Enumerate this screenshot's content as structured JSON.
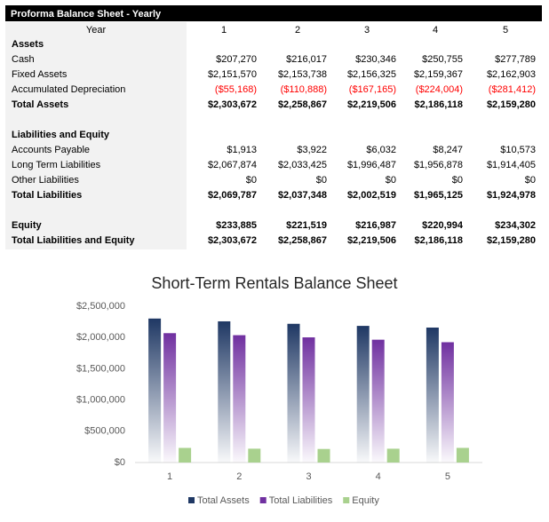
{
  "table": {
    "title": "Proforma Balance Sheet - Yearly",
    "header": [
      "Year",
      "1",
      "2",
      "3",
      "4",
      "5"
    ],
    "sections": [
      {
        "rows": [
          {
            "cells": [
              "Assets"
            ],
            "bold": true
          },
          {
            "cells": [
              "Cash",
              "$207,270",
              "$216,017",
              "$230,346",
              "$250,755",
              "$277,789"
            ]
          },
          {
            "cells": [
              "Fixed Assets",
              "$2,151,570",
              "$2,153,738",
              "$2,156,325",
              "$2,159,367",
              "$2,162,903"
            ]
          },
          {
            "cells": [
              "Accumulated Depreciation",
              "($55,168)",
              "($110,888)",
              "($167,165)",
              "($224,004)",
              "($281,412)"
            ],
            "color": "#ff0000"
          },
          {
            "cells": [
              "Total Assets",
              "$2,303,672",
              "$2,258,867",
              "$2,219,506",
              "$2,186,118",
              "$2,159,280"
            ],
            "bold": true
          }
        ]
      },
      {
        "rows": [
          {
            "cells": [
              "Liabilities and Equity"
            ],
            "bold": true
          },
          {
            "cells": [
              "Accounts Payable",
              "$1,913",
              "$3,922",
              "$6,032",
              "$8,247",
              "$10,573"
            ]
          },
          {
            "cells": [
              "Long Term Liabilities",
              "$2,067,874",
              "$2,033,425",
              "$1,996,487",
              "$1,956,878",
              "$1,914,405"
            ]
          },
          {
            "cells": [
              "Other Liabilities",
              "$0",
              "$0",
              "$0",
              "$0",
              "$0"
            ]
          },
          {
            "cells": [
              "Total Liabilities",
              "$2,069,787",
              "$2,037,348",
              "$2,002,519",
              "$1,965,125",
              "$1,924,978"
            ],
            "bold": true
          }
        ]
      },
      {
        "rows": [
          {
            "cells": [
              "Equity",
              "$233,885",
              "$221,519",
              "$216,987",
              "$220,994",
              "$234,302"
            ],
            "bold": true
          },
          {
            "cells": [
              "Total Liabilities and Equity",
              "$2,303,672",
              "$2,258,867",
              "$2,219,506",
              "$2,186,118",
              "$2,159,280"
            ],
            "bold": true
          }
        ]
      }
    ]
  },
  "chart_data": {
    "type": "bar",
    "title": "Short-Term Rentals Balance Sheet",
    "categories": [
      "1",
      "2",
      "3",
      "4",
      "5"
    ],
    "series": [
      {
        "name": "Total Assets",
        "color": "#1f3864",
        "values": [
          2303672,
          2258867,
          2219506,
          2186118,
          2159280
        ]
      },
      {
        "name": "Total Liabilities",
        "color": "#7030a0",
        "values": [
          2069787,
          2037348,
          2002519,
          1965125,
          1924978
        ]
      },
      {
        "name": "Equity",
        "color": "#a9d18e",
        "values": [
          233885,
          221519,
          216987,
          220994,
          234302
        ]
      }
    ],
    "ylim": [
      0,
      2500000
    ],
    "yticks": [
      {
        "value": 0,
        "label": "$0"
      },
      {
        "value": 500000,
        "label": "$500,000"
      },
      {
        "value": 1000000,
        "label": "$1,000,000"
      },
      {
        "value": 1500000,
        "label": "$1,500,000"
      },
      {
        "value": 2000000,
        "label": "$2,000,000"
      },
      {
        "value": 2500000,
        "label": "$2,500,000"
      }
    ],
    "legend": "bottom"
  }
}
